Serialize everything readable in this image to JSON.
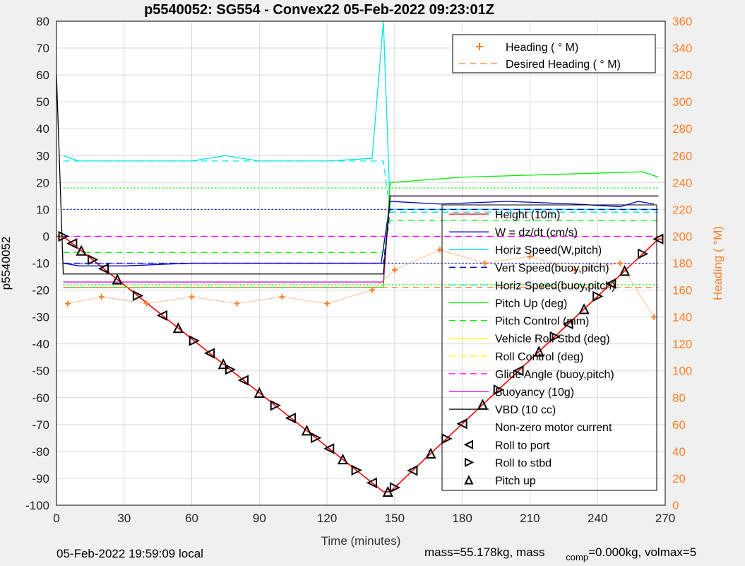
{
  "chart_data": {
    "type": "line",
    "title": "p5540052: SG554 - Convex22 05-Feb-2022 09:23:01Z",
    "xlabel": "Time (minutes)",
    "ylabel_left": "p5540052",
    "ylabel_right": "Heading (  °M)",
    "xlim": [
      0,
      270
    ],
    "ylim_left": [
      -100,
      80
    ],
    "ylim_right": [
      0,
      360
    ],
    "xticks": [
      "0",
      "30",
      "60",
      "90",
      "120",
      "150",
      "180",
      "210",
      "240",
      "270"
    ],
    "yticks_left": [
      "80",
      "70",
      "60",
      "50",
      "40",
      "30",
      "20",
      "10",
      "0",
      "-10",
      "-20",
      "-30",
      "-40",
      "-50",
      "-60",
      "-70",
      "-80",
      "-90",
      "-100"
    ],
    "yticks_right": [
      "360",
      "340",
      "320",
      "300",
      "280",
      "260",
      "240",
      "220",
      "200",
      "180",
      "160",
      "140",
      "120",
      "100",
      "80",
      "60",
      "40",
      "20",
      "0"
    ],
    "grid": true,
    "legend_top": [
      {
        "label": "Heading (  ° M)",
        "color": "#ff7f27",
        "style": "plus"
      },
      {
        "label": "Desired Heading (    ° M)",
        "color": "#ff7f27",
        "style": "dashed"
      }
    ],
    "legend_main": [
      {
        "label": "Height (10m)",
        "color": "#ff0000",
        "style": "solid"
      },
      {
        "label": "W = dz/dt (cm/s)",
        "color": "#0000cc",
        "style": "solid"
      },
      {
        "label": "Horiz Speed(W,pitch)",
        "color": "#00e5e5",
        "style": "solid"
      },
      {
        "label": "Vert Speed(buoy,pitch)",
        "color": "#0000cc",
        "style": "dashed"
      },
      {
        "label": "Horiz Speed(buoy,pitch)",
        "color": "#00e5e5",
        "style": "dashed"
      },
      {
        "label": "Pitch Up (deg)",
        "color": "#00ee00",
        "style": "solid"
      },
      {
        "label": "Pitch Control (mm)",
        "color": "#00ee00",
        "style": "dashed"
      },
      {
        "label": "Vehicle Roll Stbd (deg)",
        "color": "#ffff00",
        "style": "solid"
      },
      {
        "label": "Roll Control (deg)",
        "color": "#ffff00",
        "style": "dashed"
      },
      {
        "label": "Glide Angle (buoy,pitch)",
        "color": "#ff00ff",
        "style": "dashed"
      },
      {
        "label": "Buoyancy (10g)",
        "color": "#cc00cc",
        "style": "solid"
      },
      {
        "label": "VBD (10 cc)",
        "color": "#000000",
        "style": "solid"
      },
      {
        "label": "Non-zero motor current",
        "color": "#000000",
        "style": "none"
      },
      {
        "label": "Roll to port",
        "color": "#000000",
        "style": "tri-left"
      },
      {
        "label": "Roll to stbd",
        "color": "#000000",
        "style": "tri-right"
      },
      {
        "label": "Pitch up",
        "color": "#000000",
        "style": "tri-up"
      }
    ],
    "series": [
      {
        "name": "Height (10m)",
        "x": [
          0,
          3,
          145,
          148,
          267,
          269
        ],
        "values": [
          0,
          0,
          -95,
          -95,
          -1,
          -1
        ]
      },
      {
        "name": "W = dz/dt (cm/s)",
        "x": [
          3,
          10,
          30,
          60,
          90,
          120,
          144,
          148,
          170,
          200,
          230,
          250,
          258,
          265
        ],
        "values": [
          -10,
          -11,
          -11,
          -10,
          -10,
          -10,
          -10,
          13,
          12,
          13,
          12,
          11,
          13,
          12
        ]
      },
      {
        "name": "Horiz Speed(W,pitch)",
        "x": [
          3,
          10,
          30,
          60,
          75,
          90,
          120,
          140,
          145,
          148,
          200,
          265
        ],
        "values": [
          30,
          28,
          28,
          28,
          30,
          28,
          28,
          29,
          80,
          10,
          10,
          10
        ]
      },
      {
        "name": "Vert Speed(buoy,pitch)",
        "x": [
          3,
          145,
          148,
          267
        ],
        "values": [
          -10,
          -10,
          10,
          10
        ]
      },
      {
        "name": "Horiz Speed(buoy,pitch)",
        "x": [
          3,
          145,
          148,
          267
        ],
        "values": [
          28,
          28,
          9,
          9
        ]
      },
      {
        "name": "Pitch Up (deg)",
        "x": [
          3,
          10,
          145,
          148,
          180,
          220,
          260,
          267
        ],
        "values": [
          -19,
          -19,
          -19,
          20,
          22,
          23,
          24,
          22
        ]
      },
      {
        "name": "Pitch Control (mm)",
        "x": [
          3,
          145,
          148,
          267
        ],
        "values": [
          -6,
          -6,
          6,
          6
        ]
      },
      {
        "name": "Glide Angle (buoy,pitch)",
        "x": [
          3,
          145,
          148,
          267
        ],
        "values": [
          0,
          0,
          0,
          0
        ]
      },
      {
        "name": "Buoyancy (10g)",
        "x": [
          3,
          145,
          148,
          267
        ],
        "values": [
          -17,
          -17,
          15,
          15
        ]
      },
      {
        "name": "VBD (10 cc)",
        "x": [
          0,
          3,
          145,
          148,
          267
        ],
        "values": [
          60,
          -14,
          -14,
          15,
          15
        ]
      },
      {
        "name": "Heading (  ° M)",
        "axis": "right",
        "x": [
          5,
          20,
          40,
          60,
          80,
          100,
          120,
          140,
          150,
          170,
          190,
          210,
          230,
          250,
          265
        ],
        "values": [
          150,
          155,
          150,
          155,
          150,
          155,
          150,
          160,
          175,
          190,
          180,
          185,
          175,
          180,
          140
        ]
      },
      {
        "name": "Desired Heading (    ° M)",
        "axis": "right",
        "x": [
          3,
          267
        ],
        "values": [
          162,
          162
        ]
      }
    ],
    "reference_lines": [
      {
        "y": 10,
        "color": "#0000cc",
        "style": "dotted"
      },
      {
        "y": -10,
        "color": "#0000cc",
        "style": "dotted"
      },
      {
        "y": 18,
        "color": "#00ee00",
        "style": "dotted"
      },
      {
        "y": -18,
        "color": "#00ee00",
        "style": "dotted"
      }
    ]
  },
  "footer": {
    "local_time": "05-Feb-2022 19:59:09 local",
    "mass_text": "mass=55.178kg, mass",
    "comp_sub": "comp",
    "comp_text": "=0.000kg, volmax=5"
  }
}
